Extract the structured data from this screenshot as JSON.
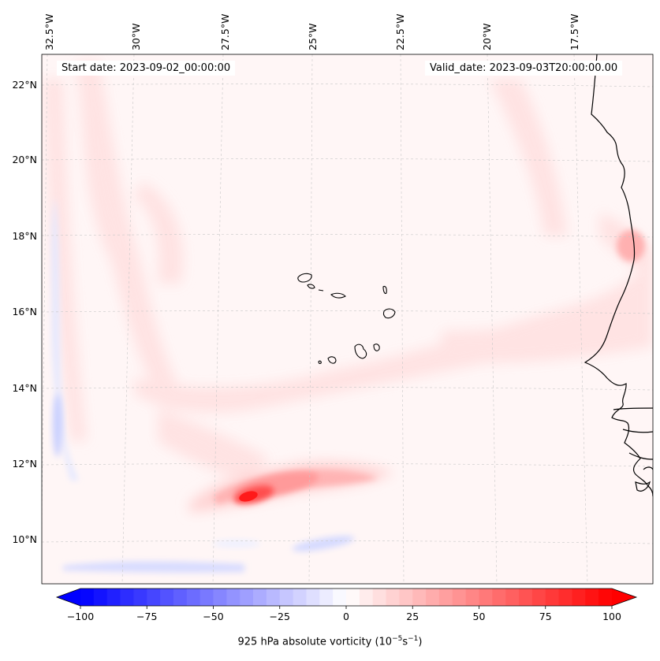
{
  "header": {
    "start_date": "Start date: 2023-09-02_00:00:00",
    "valid_date": "Valid_date: 2023-09-03T20:00:00.00"
  },
  "map": {
    "longitude_labels": [
      "32.5°W",
      "30°W",
      "27.5°W",
      "25°W",
      "22.5°W",
      "20°W",
      "17.5°W"
    ],
    "latitude_labels": [
      "22°N",
      "20°N",
      "18°N",
      "16°N",
      "14°N",
      "12°N",
      "10°N"
    ],
    "field": "925 hPa absolute vorticity",
    "feature": "vorticity maximum near 11°N 27°W",
    "islands": "Cape Verde Islands",
    "coastline": "West Africa"
  },
  "colorbar": {
    "title_main": "925 hPa absolute vorticity (10",
    "title_exp1": "−5",
    "title_unit": "s",
    "title_exp2": "−1",
    "title_close": ")",
    "tick_labels": [
      "−100",
      "−75",
      "−50",
      "−25",
      "0",
      "25",
      "50",
      "75",
      "100"
    ],
    "min": -100,
    "max": 100,
    "negative_color": "#0000ff",
    "zero_color": "#ffffff",
    "positive_color": "#ff0000"
  }
}
